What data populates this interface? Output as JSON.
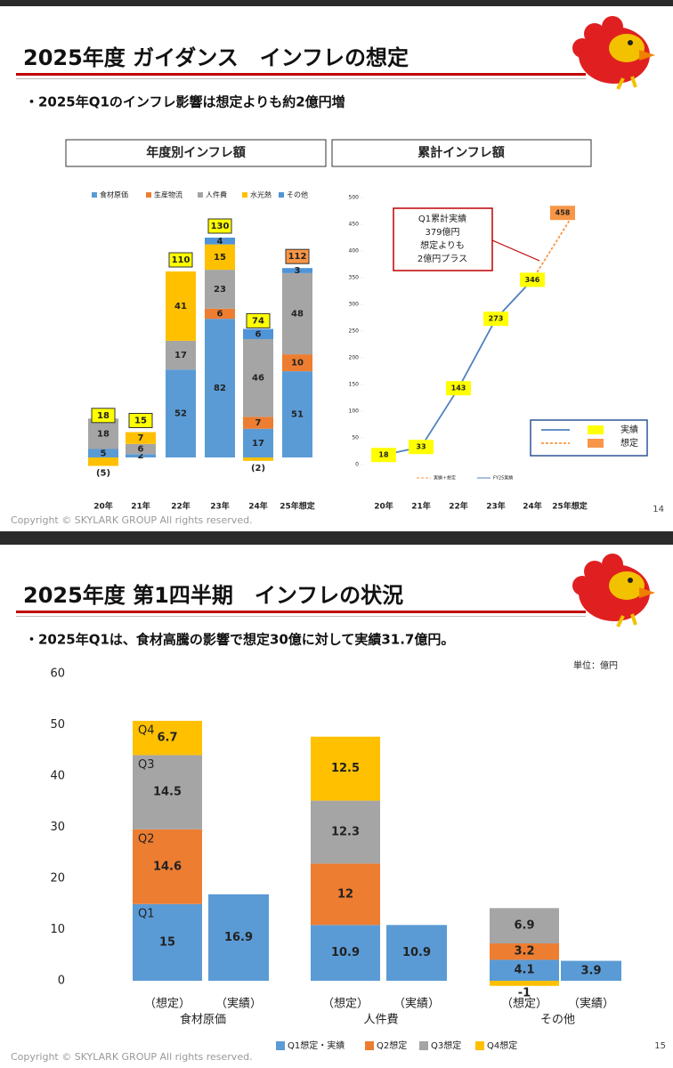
{
  "slides": [
    {
      "title": "2025年度 ガイダンス　インフレの想定",
      "bullet": "・2025年Q1のインフレ影響は想定よりも約2億円増",
      "page": 14,
      "copyright": "Copyright © SKYLARK GROUP All rights reserved."
    },
    {
      "title": "2025年度 第1四半期　インフレの状況",
      "bullet": "・2025年Q1は、食材高騰の影響で想定30億に対して実績31.7億円。",
      "unit": "単位：億円",
      "page": 15,
      "copyright": "Copyright © SKYLARK GROUP All rights reserved."
    }
  ],
  "chart_data": [
    {
      "type": "stacked_bar",
      "title": "年度別インフレ額",
      "categories": [
        "20年",
        "21年",
        "22年",
        "23年",
        "24年",
        "25年想定"
      ],
      "series": [
        {
          "name": "食材原価",
          "color": "#5b9bd5",
          "values": [
            5,
            2,
            52,
            82,
            17,
            51
          ]
        },
        {
          "name": "生産物流",
          "color": "#ed7d31",
          "values": [
            null,
            null,
            null,
            6,
            7,
            10
          ]
        },
        {
          "name": "人件費",
          "color": "#a5a5a5",
          "values": [
            18,
            6,
            17,
            23,
            46,
            48
          ]
        },
        {
          "name": "水光熱",
          "color": "#ffc000",
          "values": [
            -5,
            7,
            41,
            15,
            -2,
            null
          ],
          "value_labels": [
            "(5)",
            "7",
            "41",
            "15",
            "(2)",
            null
          ]
        },
        {
          "name": "その他",
          "color": "#4f94d8",
          "values": [
            null,
            null,
            null,
            4,
            6,
            3
          ]
        }
      ],
      "totals": [
        18,
        15,
        110,
        130,
        74,
        112
      ],
      "total_box_colors": [
        "#ffff00",
        "#ffff00",
        "#ffff00",
        "#ffff00",
        "#ffff00",
        "#f79646"
      ]
    },
    {
      "type": "line",
      "title": "累計インフレ額",
      "categories": [
        "20年",
        "21年",
        "22年",
        "23年",
        "24年",
        "25年想定"
      ],
      "ylim": [
        0,
        500
      ],
      "yticks": [
        0,
        50,
        100,
        150,
        200,
        250,
        300,
        350,
        400,
        450,
        500
      ],
      "series": [
        {
          "name": "実績",
          "color": "#4f81bd",
          "label_color": "#ffff00",
          "values": [
            18,
            33,
            143,
            273,
            346,
            null
          ]
        },
        {
          "name": "想定",
          "color": "#f79646",
          "label_color": "#f79646",
          "dash": true,
          "values": [
            null,
            null,
            null,
            null,
            346,
            458
          ],
          "value_labels": [
            null,
            null,
            null,
            null,
            null,
            "458"
          ]
        }
      ],
      "annotation": [
        "Q1累計実績",
        "379億円",
        "想定よりも",
        "2億円プラス"
      ],
      "inner_legend": [
        "実績＋想定",
        "FY25実績"
      ]
    },
    {
      "type": "stacked_bar",
      "categories": [
        "（想定）",
        "（実績）",
        "（想定）",
        "（実績）",
        "（想定）",
        "（実績）"
      ],
      "groups": [
        "食材原価",
        "人件費",
        "その他"
      ],
      "ylim": [
        0,
        60
      ],
      "yticks": [
        0,
        10,
        20,
        30,
        40,
        50,
        60
      ],
      "grid": false,
      "series": [
        {
          "name": "Q1想定・実績",
          "color": "#5b9bd5",
          "values": [
            15,
            16.9,
            10.9,
            10.9,
            4.1,
            3.9
          ]
        },
        {
          "name": "Q2想定",
          "color": "#ed7d31",
          "values": [
            14.6,
            null,
            12,
            null,
            3.2,
            null
          ]
        },
        {
          "name": "Q3想定",
          "color": "#a5a5a5",
          "values": [
            14.5,
            null,
            12.3,
            null,
            6.9,
            null
          ]
        },
        {
          "name": "Q4想定",
          "color": "#ffc000",
          "values": [
            6.7,
            null,
            12.5,
            null,
            -1,
            null
          ]
        }
      ],
      "stack_labels": [
        "Q1",
        "Q2",
        "Q3",
        "Q4"
      ]
    }
  ]
}
